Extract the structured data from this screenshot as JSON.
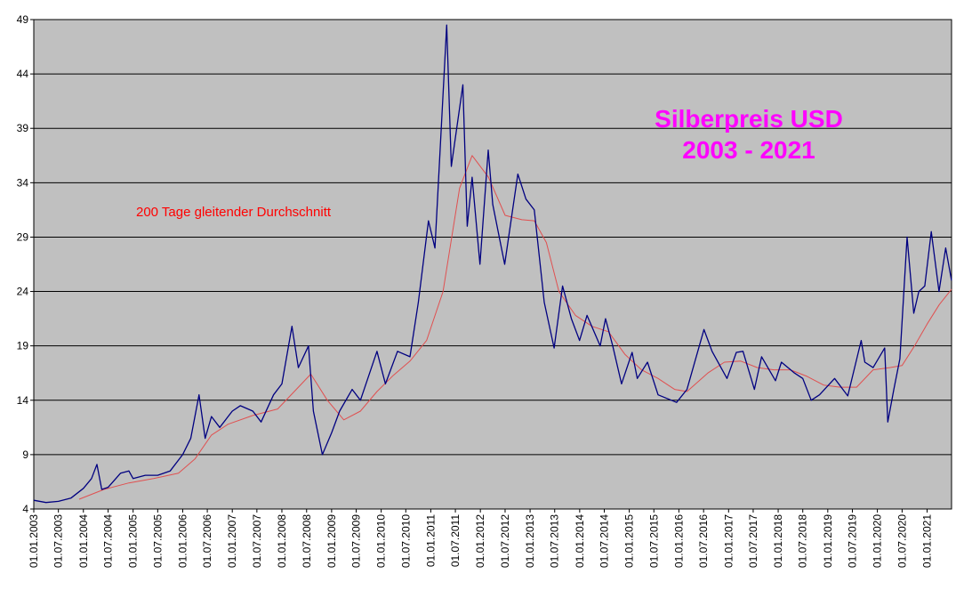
{
  "chart_data": {
    "type": "line",
    "title": "Silberpreis USD",
    "subtitle": "2003 - 2021",
    "annotation": "200 Tage gleitender Durchschnitt",
    "xlabel": "",
    "ylabel": "",
    "ylim": [
      4,
      49
    ],
    "yticks": [
      4,
      9,
      14,
      19,
      24,
      29,
      34,
      39,
      44,
      49
    ],
    "xlim": [
      "2003-01-01",
      "2021-06-30"
    ],
    "xtick_labels": [
      "01.01.2003",
      "01.07.2003",
      "01.01.2004",
      "01.07.2004",
      "01.01.2005",
      "01.07.2005",
      "01.01.2006",
      "01.07.2006",
      "01.01.2007",
      "01.07.2007",
      "01.01.2008",
      "01.07.2008",
      "01.01.2009",
      "01.07.2009",
      "01.01.2010",
      "01.07.2010",
      "01.01.2011",
      "01.07.2011",
      "01.01.2012",
      "01.07.2012",
      "01.01.2013",
      "01.07.2013",
      "01.01.2014",
      "01.07.2014",
      "01.01.2015",
      "01.07.2015",
      "01.01.2016",
      "01.07.2016",
      "01.01.2017",
      "01.07.2017",
      "01.01.2018",
      "01.07.2018",
      "01.01.2019",
      "01.07.2019",
      "01.01.2020",
      "01.07.2020",
      "01.01.2021"
    ],
    "grid": "horizontal",
    "colors": {
      "price": "#000080",
      "moving_average": "#e05050",
      "title": "#ff00ff",
      "annotation": "#ff0000",
      "plot_background": "#c0c0c0"
    },
    "series": [
      {
        "key": "price",
        "values": [
          [
            "2003-01-01",
            4.8
          ],
          [
            "2003-04-01",
            4.6
          ],
          [
            "2003-07-01",
            4.7
          ],
          [
            "2003-10-01",
            5.0
          ],
          [
            "2004-01-01",
            5.9
          ],
          [
            "2004-03-01",
            6.8
          ],
          [
            "2004-04-10",
            8.1
          ],
          [
            "2004-05-15",
            5.8
          ],
          [
            "2004-07-01",
            6.0
          ],
          [
            "2004-10-01",
            7.3
          ],
          [
            "2004-12-01",
            7.5
          ],
          [
            "2005-01-01",
            6.8
          ],
          [
            "2005-04-01",
            7.1
          ],
          [
            "2005-07-01",
            7.1
          ],
          [
            "2005-10-01",
            7.5
          ],
          [
            "2006-01-01",
            9.0
          ],
          [
            "2006-03-01",
            10.5
          ],
          [
            "2006-05-01",
            14.5
          ],
          [
            "2006-06-15",
            10.5
          ],
          [
            "2006-08-01",
            12.5
          ],
          [
            "2006-10-01",
            11.5
          ],
          [
            "2007-01-01",
            13.0
          ],
          [
            "2007-03-01",
            13.5
          ],
          [
            "2007-06-01",
            13.0
          ],
          [
            "2007-08-01",
            12.0
          ],
          [
            "2007-11-01",
            14.5
          ],
          [
            "2008-01-01",
            15.5
          ],
          [
            "2008-03-15",
            20.8
          ],
          [
            "2008-05-01",
            17.0
          ],
          [
            "2008-07-15",
            19.0
          ],
          [
            "2008-08-20",
            13.0
          ],
          [
            "2008-10-25",
            9.0
          ],
          [
            "2009-01-01",
            11.0
          ],
          [
            "2009-03-01",
            13.0
          ],
          [
            "2009-06-01",
            15.0
          ],
          [
            "2009-08-01",
            14.0
          ],
          [
            "2009-12-01",
            18.5
          ],
          [
            "2010-02-01",
            15.5
          ],
          [
            "2010-05-01",
            18.5
          ],
          [
            "2010-08-01",
            18.0
          ],
          [
            "2010-10-01",
            23.0
          ],
          [
            "2010-12-15",
            30.5
          ],
          [
            "2011-02-01",
            28.0
          ],
          [
            "2011-04-28",
            48.5
          ],
          [
            "2011-06-01",
            35.5
          ],
          [
            "2011-08-25",
            43.0
          ],
          [
            "2011-09-26",
            30.0
          ],
          [
            "2011-11-01",
            34.5
          ],
          [
            "2011-12-29",
            26.5
          ],
          [
            "2012-02-28",
            37.0
          ],
          [
            "2012-04-01",
            32.0
          ],
          [
            "2012-06-28",
            26.5
          ],
          [
            "2012-10-03",
            34.8
          ],
          [
            "2012-12-01",
            32.5
          ],
          [
            "2013-02-01",
            31.5
          ],
          [
            "2013-04-15",
            23.0
          ],
          [
            "2013-06-27",
            18.8
          ],
          [
            "2013-08-28",
            24.5
          ],
          [
            "2013-11-01",
            21.5
          ],
          [
            "2013-12-31",
            19.5
          ],
          [
            "2014-02-24",
            21.8
          ],
          [
            "2014-06-01",
            19.0
          ],
          [
            "2014-07-10",
            21.5
          ],
          [
            "2014-09-01",
            19.0
          ],
          [
            "2014-11-05",
            15.5
          ],
          [
            "2015-01-22",
            18.4
          ],
          [
            "2015-03-01",
            16.0
          ],
          [
            "2015-05-15",
            17.5
          ],
          [
            "2015-08-01",
            14.5
          ],
          [
            "2015-12-15",
            13.8
          ],
          [
            "2016-03-01",
            15.0
          ],
          [
            "2016-07-04",
            20.5
          ],
          [
            "2016-09-01",
            18.5
          ],
          [
            "2016-12-20",
            16.0
          ],
          [
            "2017-02-27",
            18.4
          ],
          [
            "2017-04-17",
            18.5
          ],
          [
            "2017-07-10",
            15.0
          ],
          [
            "2017-09-01",
            18.0
          ],
          [
            "2017-12-12",
            15.8
          ],
          [
            "2018-01-25",
            17.5
          ],
          [
            "2018-05-01",
            16.5
          ],
          [
            "2018-07-01",
            16.0
          ],
          [
            "2018-09-01",
            14.0
          ],
          [
            "2018-11-01",
            14.5
          ],
          [
            "2019-02-20",
            16.0
          ],
          [
            "2019-05-28",
            14.4
          ],
          [
            "2019-09-04",
            19.5
          ],
          [
            "2019-10-01",
            17.5
          ],
          [
            "2019-12-01",
            17.0
          ],
          [
            "2020-02-24",
            18.8
          ],
          [
            "2020-03-18",
            12.0
          ],
          [
            "2020-05-01",
            15.0
          ],
          [
            "2020-06-15",
            17.8
          ],
          [
            "2020-08-07",
            29.0
          ],
          [
            "2020-09-25",
            22.0
          ],
          [
            "2020-11-01",
            24.0
          ],
          [
            "2020-12-15",
            24.5
          ],
          [
            "2021-02-01",
            29.5
          ],
          [
            "2021-03-30",
            24.0
          ],
          [
            "2021-05-18",
            28.0
          ],
          [
            "2021-06-30",
            25.0
          ]
        ]
      },
      {
        "key": "moving_average",
        "values": [
          [
            "2003-12-01",
            4.9
          ],
          [
            "2004-06-01",
            5.8
          ],
          [
            "2004-12-01",
            6.4
          ],
          [
            "2005-06-01",
            6.8
          ],
          [
            "2005-12-01",
            7.3
          ],
          [
            "2006-04-01",
            8.6
          ],
          [
            "2006-08-01",
            10.8
          ],
          [
            "2006-12-01",
            11.8
          ],
          [
            "2007-06-01",
            12.6
          ],
          [
            "2007-12-01",
            13.2
          ],
          [
            "2008-04-01",
            14.8
          ],
          [
            "2008-08-01",
            16.4
          ],
          [
            "2008-12-01",
            14.0
          ],
          [
            "2009-04-01",
            12.2
          ],
          [
            "2009-08-01",
            13.0
          ],
          [
            "2009-12-01",
            14.8
          ],
          [
            "2010-04-01",
            16.3
          ],
          [
            "2010-08-01",
            17.6
          ],
          [
            "2010-12-01",
            19.5
          ],
          [
            "2011-04-01",
            24.0
          ],
          [
            "2011-08-01",
            33.5
          ],
          [
            "2011-11-01",
            36.5
          ],
          [
            "2012-03-01",
            34.5
          ],
          [
            "2012-07-01",
            31.0
          ],
          [
            "2012-11-01",
            30.6
          ],
          [
            "2013-02-01",
            30.5
          ],
          [
            "2013-05-01",
            28.5
          ],
          [
            "2013-08-01",
            24.0
          ],
          [
            "2013-12-01",
            21.8
          ],
          [
            "2014-04-01",
            20.8
          ],
          [
            "2014-08-01",
            20.3
          ],
          [
            "2014-12-01",
            18.2
          ],
          [
            "2015-04-01",
            16.8
          ],
          [
            "2015-08-01",
            16.0
          ],
          [
            "2015-12-01",
            15.0
          ],
          [
            "2016-03-01",
            14.8
          ],
          [
            "2016-08-01",
            16.5
          ],
          [
            "2016-12-01",
            17.5
          ],
          [
            "2017-04-01",
            17.6
          ],
          [
            "2017-08-01",
            17.0
          ],
          [
            "2017-12-01",
            16.8
          ],
          [
            "2018-04-01",
            16.8
          ],
          [
            "2018-08-01",
            16.2
          ],
          [
            "2018-12-01",
            15.4
          ],
          [
            "2019-04-01",
            15.2
          ],
          [
            "2019-08-01",
            15.2
          ],
          [
            "2019-12-01",
            16.8
          ],
          [
            "2020-04-01",
            17.0
          ],
          [
            "2020-07-01",
            17.2
          ],
          [
            "2020-10-01",
            19.0
          ],
          [
            "2021-01-01",
            21.0
          ],
          [
            "2021-04-01",
            22.8
          ],
          [
            "2021-06-30",
            24.2
          ]
        ]
      }
    ]
  }
}
